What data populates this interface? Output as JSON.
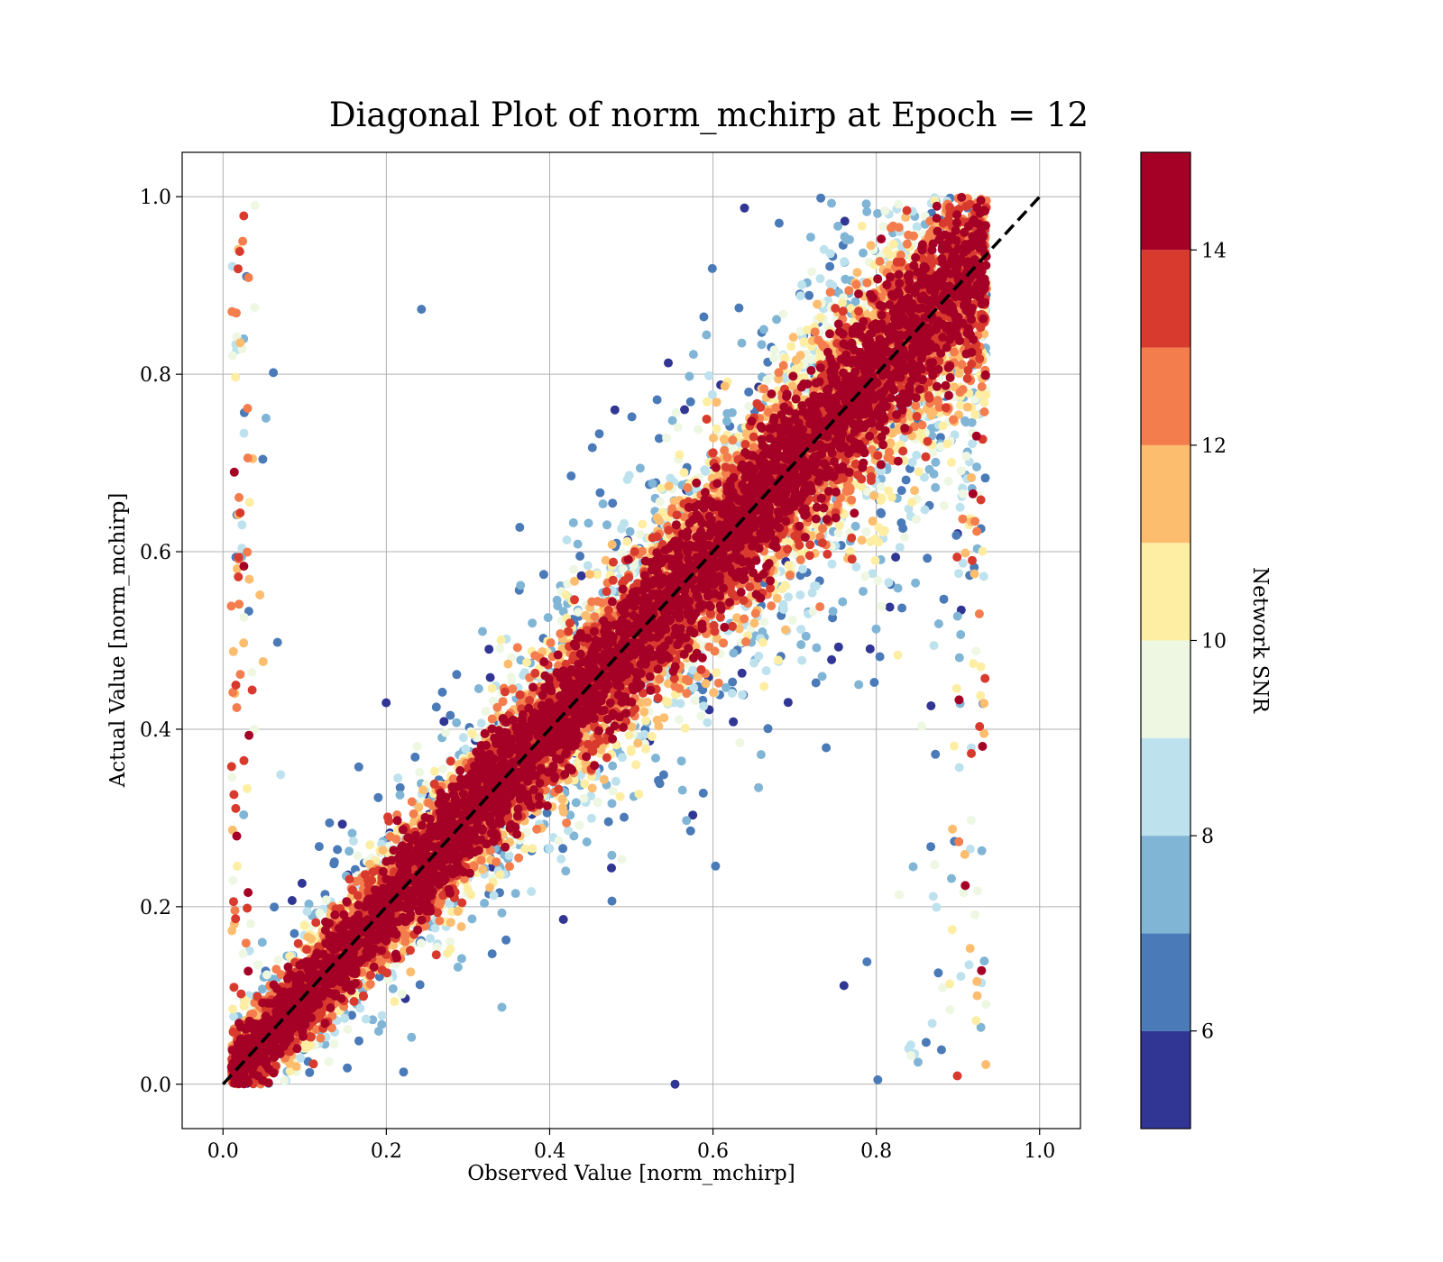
{
  "chart_data": {
    "type": "scatter",
    "title": "Diagonal Plot of norm_mchirp at Epoch = 12",
    "xlabel": "Observed Value [norm_mchirp]",
    "ylabel": "Actual Value [norm_mchirp]",
    "xlim": [
      -0.05,
      1.05
    ],
    "ylim": [
      -0.05,
      1.05
    ],
    "x_ticks": [
      "0.0",
      "0.2",
      "0.4",
      "0.6",
      "0.8",
      "1.0"
    ],
    "y_ticks": [
      "0.0",
      "0.2",
      "0.4",
      "0.6",
      "0.8",
      "1.0"
    ],
    "grid": true,
    "reference_line": {
      "x": [
        0.0,
        1.0
      ],
      "y": [
        0.0,
        1.0
      ],
      "style": "dashed",
      "color": "#000000"
    },
    "colorbar": {
      "label": "Network SNR",
      "range": [
        5,
        15
      ],
      "tick_labels": [
        "6",
        "8",
        "10",
        "12",
        "14"
      ],
      "tick_values": [
        6,
        8,
        10,
        12,
        14
      ],
      "bins": [
        {
          "from": 5,
          "to": 6,
          "color": "#313695"
        },
        {
          "from": 6,
          "to": 7,
          "color": "#4a7ab7"
        },
        {
          "from": 7,
          "to": 8,
          "color": "#80b5d6"
        },
        {
          "from": 8,
          "to": 9,
          "color": "#bde2ee"
        },
        {
          "from": 9,
          "to": 10,
          "color": "#edf7e2"
        },
        {
          "from": 10,
          "to": 11,
          "color": "#fdeea3"
        },
        {
          "from": 11,
          "to": 12,
          "color": "#fdbd6f"
        },
        {
          "from": 12,
          "to": 13,
          "color": "#f47d4e"
        },
        {
          "from": 13,
          "to": 14,
          "color": "#d93a2e"
        },
        {
          "from": 14,
          "to": 15,
          "color": "#a50026"
        }
      ]
    },
    "points_summary": {
      "count_approx": 45000,
      "note_visible": "dense red band along y = x; lower SNR points scattered away from the diagonal"
    }
  }
}
